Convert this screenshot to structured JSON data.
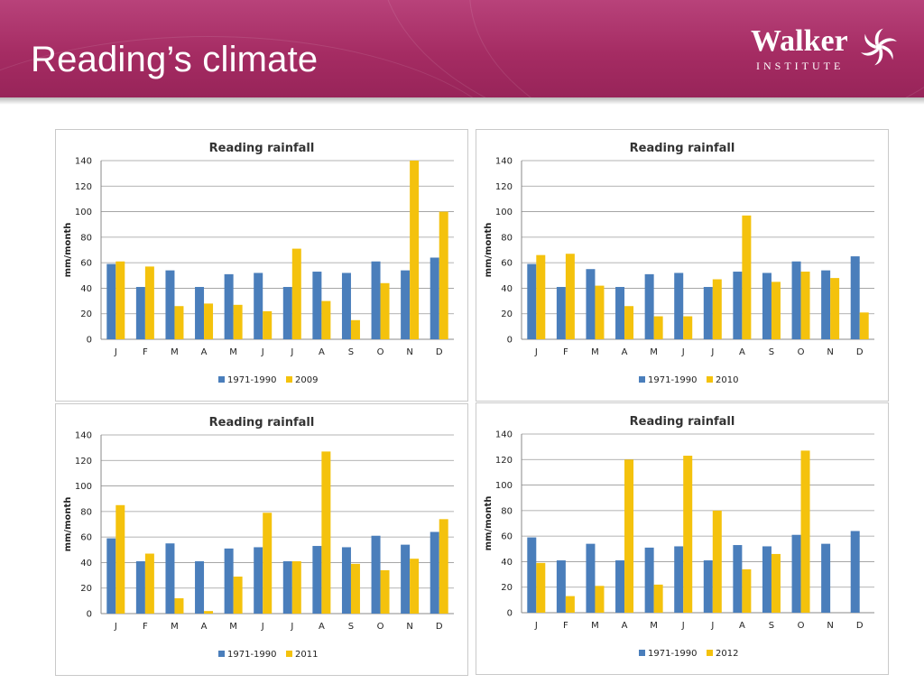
{
  "slide": {
    "title": "Reading’s climate",
    "logo_name": "Walker",
    "logo_sub": "INSTITUTE",
    "colors": {
      "header": "#a52c63",
      "baseline": "#4a7ebb",
      "year": "#f4c20d"
    }
  },
  "chart_data": [
    {
      "type": "bar",
      "title": "Reading rainfall",
      "ylabel": "mm/month",
      "categories": [
        "J",
        "F",
        "M",
        "A",
        "M",
        "J",
        "J",
        "A",
        "S",
        "O",
        "N",
        "D"
      ],
      "ylim": [
        0,
        140
      ],
      "yticks": [
        0,
        20,
        40,
        60,
        80,
        100,
        120,
        140
      ],
      "grid": true,
      "legend": "bottom",
      "series": [
        {
          "name": "1971-1990",
          "color": "#4a7ebb",
          "values": [
            59,
            41,
            54,
            41,
            51,
            52,
            41,
            53,
            52,
            61,
            54,
            64
          ]
        },
        {
          "name": "2009",
          "color": "#f4c20d",
          "values": [
            61,
            57,
            26,
            28,
            27,
            22,
            71,
            30,
            15,
            44,
            140,
            100
          ]
        }
      ]
    },
    {
      "type": "bar",
      "title": "Reading rainfall",
      "ylabel": "mm/month",
      "categories": [
        "J",
        "F",
        "M",
        "A",
        "M",
        "J",
        "J",
        "A",
        "S",
        "O",
        "N",
        "D"
      ],
      "ylim": [
        0,
        140
      ],
      "yticks": [
        0,
        20,
        40,
        60,
        80,
        100,
        120,
        140
      ],
      "grid": true,
      "legend": "bottom",
      "series": [
        {
          "name": "1971-1990",
          "color": "#4a7ebb",
          "values": [
            59,
            41,
            55,
            41,
            51,
            52,
            41,
            53,
            52,
            61,
            54,
            65
          ]
        },
        {
          "name": "2010",
          "color": "#f4c20d",
          "values": [
            66,
            67,
            42,
            26,
            18,
            18,
            47,
            97,
            45,
            53,
            48,
            21
          ]
        }
      ]
    },
    {
      "type": "bar",
      "title": "Reading rainfall",
      "ylabel": "mm/month",
      "categories": [
        "J",
        "F",
        "M",
        "A",
        "M",
        "J",
        "J",
        "A",
        "S",
        "O",
        "N",
        "D"
      ],
      "ylim": [
        0,
        140
      ],
      "yticks": [
        0,
        20,
        40,
        60,
        80,
        100,
        120,
        140
      ],
      "grid": true,
      "legend": "bottom",
      "series": [
        {
          "name": "1971-1990",
          "color": "#4a7ebb",
          "values": [
            59,
            41,
            55,
            41,
            51,
            52,
            41,
            53,
            52,
            61,
            54,
            64
          ]
        },
        {
          "name": "2011",
          "color": "#f4c20d",
          "values": [
            85,
            47,
            12,
            2,
            29,
            79,
            41,
            127,
            39,
            34,
            43,
            74
          ]
        }
      ]
    },
    {
      "type": "bar",
      "title": "Reading rainfall",
      "ylabel": "mm/month",
      "categories": [
        "J",
        "F",
        "M",
        "A",
        "M",
        "J",
        "J",
        "A",
        "S",
        "O",
        "N",
        "D"
      ],
      "ylim": [
        0,
        140
      ],
      "yticks": [
        0,
        20,
        40,
        60,
        80,
        100,
        120,
        140
      ],
      "grid": true,
      "legend": "bottom",
      "series": [
        {
          "name": "1971-1990",
          "color": "#4a7ebb",
          "values": [
            59,
            41,
            54,
            41,
            51,
            52,
            41,
            53,
            52,
            61,
            54,
            64
          ]
        },
        {
          "name": "2012",
          "color": "#f4c20d",
          "values": [
            39,
            13,
            21,
            120,
            22,
            123,
            80,
            34,
            46,
            127,
            0,
            0
          ]
        }
      ]
    }
  ]
}
